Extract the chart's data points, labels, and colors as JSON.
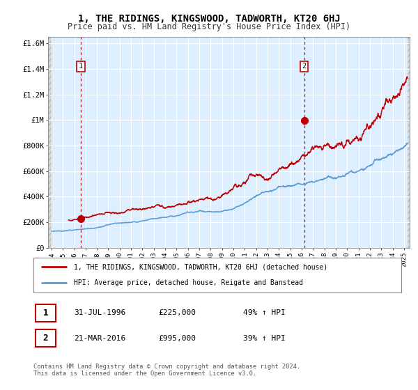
{
  "title": "1, THE RIDINGS, KINGSWOOD, TADWORTH, KT20 6HJ",
  "subtitle": "Price paid vs. HM Land Registry's House Price Index (HPI)",
  "ylim": [
    0,
    1650000
  ],
  "yticks": [
    0,
    200000,
    400000,
    600000,
    800000,
    1000000,
    1200000,
    1400000,
    1600000
  ],
  "ytick_labels": [
    "£0",
    "£200K",
    "£400K",
    "£600K",
    "£800K",
    "£1M",
    "£1.2M",
    "£1.4M",
    "£1.6M"
  ],
  "xlim_start": 1993.7,
  "xlim_end": 2025.5,
  "sale1_year": 1996.58,
  "sale1_price": 225000,
  "sale1_label": "1",
  "sale1_date": "31-JUL-1996",
  "sale1_pct": "49%",
  "sale2_year": 2016.22,
  "sale2_price": 995000,
  "sale2_label": "2",
  "sale2_date": "21-MAR-2016",
  "sale2_pct": "39%",
  "hpi_line_color": "#5b9bd5",
  "price_line_color": "#c00000",
  "sale_marker_color": "#c00000",
  "dashed_line_color": "#c00000",
  "bg_color": "#ffffff",
  "plot_bg_color": "#ddeeff",
  "grid_color": "#ffffff",
  "legend_entry1": "1, THE RIDINGS, KINGSWOOD, TADWORTH, KT20 6HJ (detached house)",
  "legend_entry2": "HPI: Average price, detached house, Reigate and Banstead",
  "footer": "Contains HM Land Registry data © Crown copyright and database right 2024.\nThis data is licensed under the Open Government Licence v3.0.",
  "title_fontsize": 10,
  "subtitle_fontsize": 8.5
}
